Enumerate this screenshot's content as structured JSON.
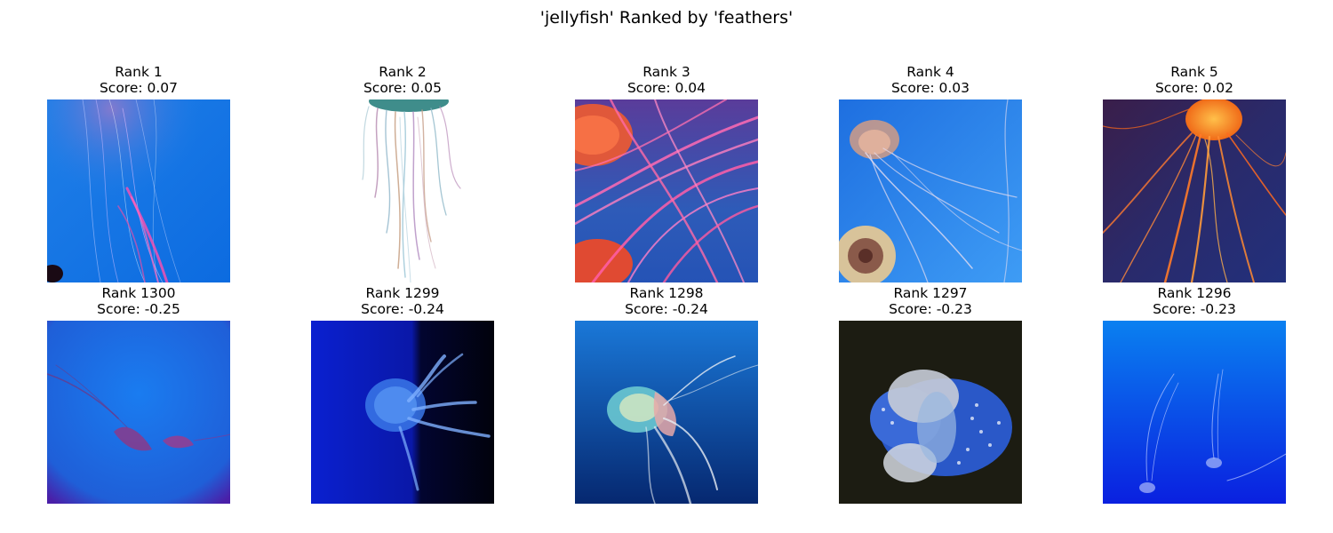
{
  "title": "'jellyfish' Ranked by 'feathers'",
  "top_row": [
    {
      "rank": "Rank 1",
      "score": "Score: 0.07",
      "scene": "tentacles-blue"
    },
    {
      "rank": "Rank 2",
      "score": "Score: 0.05",
      "scene": "tentacles-white"
    },
    {
      "rank": "Rank 3",
      "score": "Score: 0.04",
      "scene": "pink-tentacles"
    },
    {
      "rank": "Rank 4",
      "score": "Score: 0.03",
      "scene": "sea-nettles-blue"
    },
    {
      "rank": "Rank 5",
      "score": "Score: 0.02",
      "scene": "orange-sea-nettle"
    }
  ],
  "bottom_row": [
    {
      "rank": "Rank 1300",
      "score": "Score: -0.25",
      "scene": "purple-jelly"
    },
    {
      "rank": "Rank 1299",
      "score": "Score: -0.24",
      "scene": "glowing-blue-jelly"
    },
    {
      "rank": "Rank 1298",
      "score": "Score: -0.24",
      "scene": "mauve-stinger"
    },
    {
      "rank": "Rank 1297",
      "score": "Score: -0.23",
      "scene": "spotted-jelly"
    },
    {
      "rank": "Rank 1296",
      "score": "Score: -0.23",
      "scene": "small-blue-jellies"
    }
  ]
}
